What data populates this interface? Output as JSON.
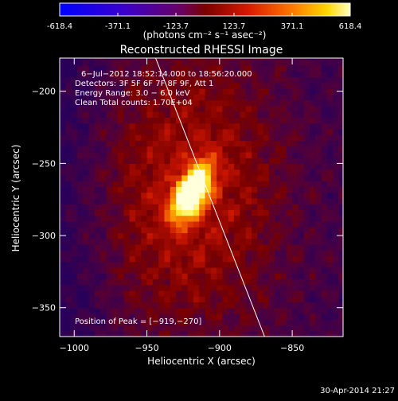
{
  "colors": {
    "background": "#000000",
    "foreground": "#ffffff",
    "limb_line": "#ffffff"
  },
  "colorbar": {
    "ticks": [
      "-618.4",
      "-371.1",
      "-123.7",
      "123.7",
      "371.1",
      "618.4"
    ],
    "values": [
      -618.4,
      -371.1,
      -123.7,
      123.7,
      371.1,
      618.4
    ],
    "range": [
      -618.4,
      618.4
    ],
    "unit_label": "(photons cm⁻² s⁻¹ asec⁻²)",
    "colormap": "blue-purple-red-yellow-white"
  },
  "chart_data": {
    "type": "heatmap",
    "title": "Reconstructed RHESSI Image",
    "xlabel": "Heliocentric X (arcsec)",
    "ylabel": "Heliocentric Y (arcsec)",
    "xlim": [
      -1010,
      -815
    ],
    "ylim": [
      -370,
      -177
    ],
    "x_ticks": [
      -1000,
      -950,
      -900,
      -850
    ],
    "x_tick_labels": [
      "−1000",
      "−950",
      "−900",
      "−850"
    ],
    "y_ticks": [
      -200,
      -250,
      -300,
      -350
    ],
    "y_tick_labels": [
      "−200",
      "−250",
      "−300",
      "−350"
    ],
    "peak": {
      "x": -919,
      "y": -270
    },
    "limb": [
      [
        -944,
        -177
      ],
      [
        -900,
        -290
      ],
      [
        -869,
        -370
      ]
    ],
    "info": [
      "6−Jul−2012 18:52:14.000 to 18:56:20.000",
      "Detectors: 3F 5F 6F 7F 8F 9F, Att 1",
      "Energy Range: 3.0 − 6.0 keV",
      "Clean     Total counts: 1.70E+04"
    ],
    "peak_label": "Position of Peak = [−919,−270]"
  },
  "footer": {
    "timestamp": "30-Apr-2014 21:27"
  }
}
